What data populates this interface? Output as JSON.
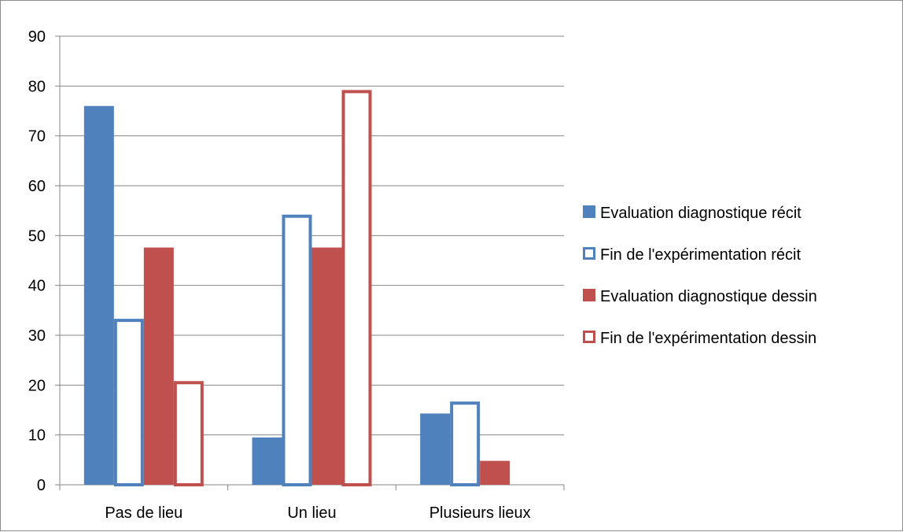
{
  "chart_data": {
    "type": "bar",
    "categories": [
      "Pas de lieu",
      "Un lieu",
      "Plusieurs lieux"
    ],
    "series": [
      {
        "name": "Evaluation diagnostique récit",
        "values": [
          76,
          9.5,
          14.3
        ],
        "color": "#4f81bd",
        "style": "filled"
      },
      {
        "name": "Fin de l'expérimentation récit",
        "values": [
          33.3,
          54.2,
          16.7
        ],
        "color": "#4f81bd",
        "style": "outline"
      },
      {
        "name": "Evaluation diagnostique dessin",
        "values": [
          47.6,
          47.6,
          4.8
        ],
        "color": "#c0504d",
        "style": "filled"
      },
      {
        "name": "Fin de l'expérimentation dessin",
        "values": [
          20.8,
          79.2,
          0
        ],
        "color": "#c0504d",
        "style": "outline"
      }
    ],
    "title": "",
    "xlabel": "",
    "ylabel": "",
    "ylim": [
      0,
      90
    ],
    "yticks": [
      0,
      10,
      20,
      30,
      40,
      50,
      60,
      70,
      80,
      90
    ],
    "grid": true,
    "legend_position": "right"
  }
}
